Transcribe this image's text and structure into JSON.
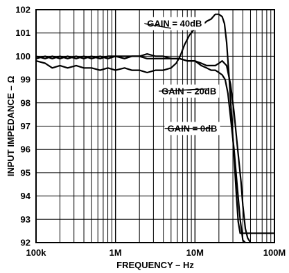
{
  "chart_data": {
    "type": "line",
    "xlabel": "FREQUENCY – Hz",
    "ylabel": "INPUT IMPEDANCE – Ω",
    "xscale": "log",
    "xlim": [
      100000,
      100000000
    ],
    "ylim": [
      92,
      102
    ],
    "grid": true,
    "x_tick_labels": [
      {
        "value": 100000,
        "label": "100k"
      },
      {
        "value": 1000000,
        "label": "1M"
      },
      {
        "value": 10000000,
        "label": "10M"
      },
      {
        "value": 100000000,
        "label": "100M"
      }
    ],
    "y_ticks": [
      92,
      93,
      94,
      95,
      96,
      97,
      98,
      99,
      100,
      101,
      102
    ],
    "annotations": [
      {
        "text": "GAIN = 40dB",
        "x": 2500000,
        "y": 101.4,
        "point_x": 5000000,
        "point_y": 101.2
      },
      {
        "text": "GAIN = 20dB",
        "x": 3800000,
        "y": 98.5,
        "point_x": 15000000,
        "point_y": 98.6
      },
      {
        "text": "GAIN = 0dB",
        "x": 4500000,
        "y": 96.9,
        "point_x": 17000000,
        "point_y": 96.9
      }
    ],
    "series": [
      {
        "x": [
          100000,
          130000,
          160000,
          200000,
          250000,
          320000,
          400000,
          500000,
          640000,
          800000,
          1000000,
          1300000,
          1600000,
          2000000,
          2500000,
          3200000,
          4000000,
          5000000,
          5800000,
          6500000,
          7400000,
          8500000,
          10000000,
          12000000,
          14000000,
          16000000,
          18000000,
          20000000,
          22000000,
          23500000,
          25000000,
          27000000,
          29000000,
          31000000,
          33000000,
          35000000,
          37000000,
          40000000,
          45000000,
          50000000,
          60000000,
          80000000,
          100000000
        ],
        "y": [
          99.8,
          99.7,
          99.5,
          99.6,
          99.5,
          99.6,
          99.5,
          99.5,
          99.4,
          99.5,
          99.4,
          99.5,
          99.4,
          99.4,
          99.3,
          99.4,
          99.4,
          99.5,
          99.7,
          100.0,
          100.5,
          100.9,
          101.2,
          101.3,
          101.5,
          101.6,
          101.8,
          101.8,
          101.7,
          101.4,
          100.6,
          99.0,
          97.3,
          95.7,
          94.2,
          92.9,
          92.4,
          92.4,
          92.4,
          92.4,
          92.4,
          92.4,
          92.4
        ]
      },
      {
        "x": [
          100000,
          130000,
          160000,
          200000,
          250000,
          320000,
          400000,
          500000,
          640000,
          800000,
          1000000,
          1300000,
          1600000,
          2000000,
          2500000,
          3200000,
          4000000,
          5000000,
          6400000,
          8000000,
          10000000,
          12000000,
          14000000,
          16000000,
          18000000,
          20000000,
          22000000,
          25000000,
          28000000,
          31000000,
          34000000,
          38000000,
          40000000,
          43000000,
          46000000,
          50000000
        ],
        "y": [
          100.0,
          99.9,
          100.0,
          99.9,
          100.0,
          99.9,
          100.0,
          99.9,
          100.0,
          99.9,
          100.0,
          99.9,
          100.0,
          100.0,
          99.9,
          99.9,
          99.9,
          99.9,
          99.9,
          99.8,
          99.8,
          99.7,
          99.6,
          99.6,
          99.6,
          99.7,
          99.8,
          99.6,
          98.8,
          97.6,
          96.2,
          94.6,
          93.6,
          92.6,
          92.2,
          92.0
        ]
      },
      {
        "x": [
          100000,
          130000,
          160000,
          200000,
          250000,
          320000,
          400000,
          500000,
          640000,
          800000,
          1000000,
          1300000,
          1600000,
          2000000,
          2500000,
          3200000,
          4000000,
          5000000,
          6400000,
          8000000,
          10000000,
          12000000,
          14000000,
          16000000,
          18000000,
          20000000,
          22000000,
          24000000,
          26000000,
          28000000,
          31000000,
          34000000,
          37000000,
          40000000,
          43000000
        ],
        "y": [
          99.9,
          100.0,
          99.9,
          100.0,
          99.9,
          100.0,
          99.9,
          100.0,
          99.9,
          100.0,
          100.0,
          100.0,
          100.0,
          100.0,
          100.1,
          100.0,
          100.0,
          99.9,
          99.9,
          99.8,
          99.8,
          99.6,
          99.5,
          99.4,
          99.4,
          99.3,
          99.2,
          99.0,
          98.4,
          97.4,
          96.0,
          94.4,
          93.0,
          92.1,
          92.0
        ]
      }
    ]
  }
}
